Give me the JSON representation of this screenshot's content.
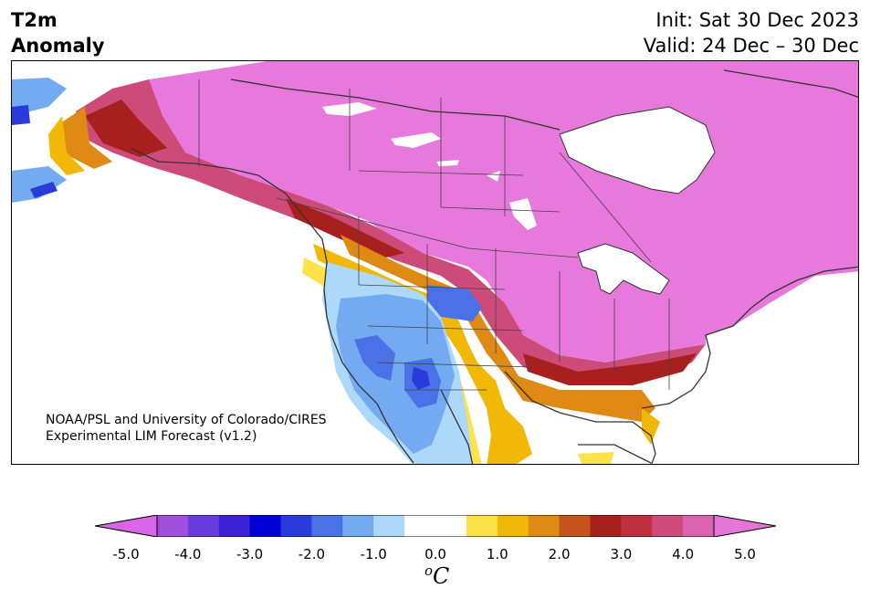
{
  "title": {
    "line1": "T2m",
    "line2": "Anomaly"
  },
  "header": {
    "init": "Init: Sat 30 Dec 2023",
    "valid": "Valid: 24 Dec – 30 Dec"
  },
  "credit": {
    "line1": "NOAA/PSL and University of Colorado/CIRES",
    "line2": "Experimental LIM Forecast (v1.2)"
  },
  "colorbar": {
    "unit_base": "C",
    "unit_sup": "o",
    "ticks": [
      "-5.0",
      "-4.0",
      "-3.0",
      "-2.0",
      "-1.0",
      "0.0",
      "1.0",
      "2.0",
      "3.0",
      "4.0",
      "5.0"
    ],
    "colors": [
      "#d966e6",
      "#9f4fdc",
      "#6a3bdc",
      "#3a21d6",
      "#0000d6",
      "#2a3bdc",
      "#4a72e6",
      "#74aaf2",
      "#acd8fa",
      "#ffffff",
      "#ffffff",
      "#fde24a",
      "#f2b807",
      "#de8a14",
      "#c4541c",
      "#a8201e",
      "#c03040",
      "#cc4b78",
      "#da64b0",
      "#e675d8"
    ]
  },
  "map": {
    "colors": {
      "strong_warm": "#e778dc",
      "warm_4": "#cc4b78",
      "warm_3": "#a8201e",
      "warm_2": "#c4541c",
      "warm_1": "#f2b807",
      "warm_05": "#fde24a",
      "cold_05": "#acd8fa",
      "cold_1": "#74aaf2",
      "cold_15": "#4a72e6",
      "cold_2": "#2a3bdc",
      "land_line": "#333333"
    }
  }
}
